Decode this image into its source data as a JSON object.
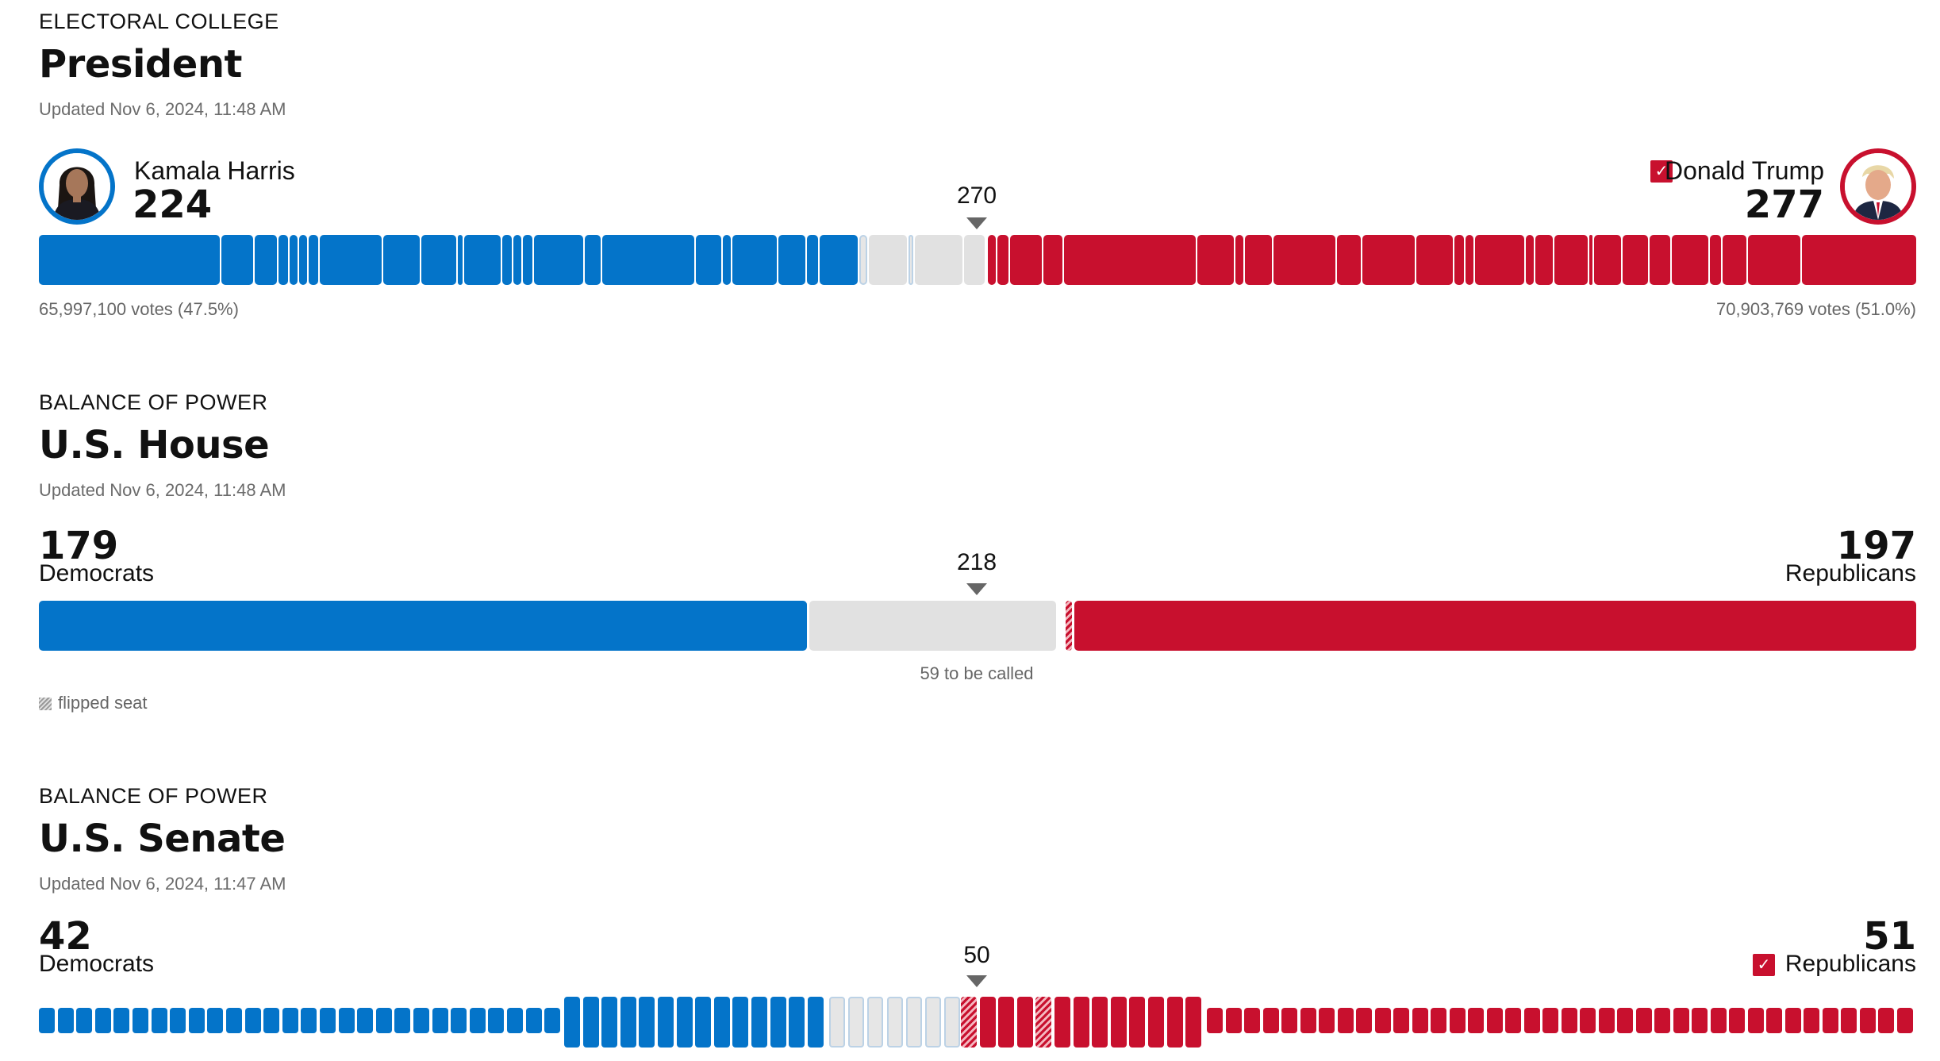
{
  "president": {
    "kicker": "ELECTORAL COLLEGE",
    "title": "President",
    "updated": "Updated Nov 6, 2024, 11:48 AM",
    "threshold": "270",
    "left": {
      "name": "Kamala Harris",
      "total": "224",
      "votes": "65,997,100 votes (47.5%)",
      "color": "#0474c9"
    },
    "right": {
      "name": "Donald Trump",
      "total": "277",
      "votes": "70,903,769 votes (51.0%)",
      "color": "#c8102e",
      "winner_icon": "check-icon"
    }
  },
  "house": {
    "kicker": "BALANCE OF POWER",
    "title": "U.S. House",
    "updated": "Updated Nov 6, 2024, 11:48 AM",
    "threshold": "218",
    "left": {
      "total": "179",
      "party": "Democrats"
    },
    "right": {
      "total": "197",
      "party": "Republicans"
    },
    "remaining": "59 to be called",
    "legend_flipped": "flipped seat"
  },
  "senate": {
    "kicker": "BALANCE OF POWER",
    "title": "U.S. Senate",
    "updated": "Updated Nov 6, 2024, 11:47 AM",
    "threshold": "50",
    "left": {
      "total": "42",
      "party": "Democrats"
    },
    "right": {
      "total": "51",
      "party": "Republicans",
      "winner_icon": "check-icon"
    }
  },
  "colors": {
    "democrat": "#0474c9",
    "republican": "#c8102e",
    "uncalled": "#e1e1e1"
  }
}
